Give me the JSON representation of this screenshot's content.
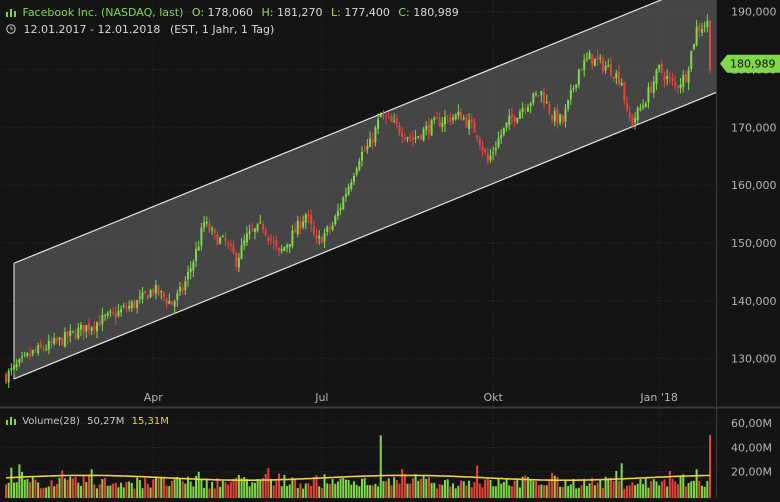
{
  "header": {
    "title": "Facebook Inc. (NASDAQ, last)",
    "open_label": "O:",
    "open": "178,060",
    "high_label": "H:",
    "high": "181,270",
    "low_label": "L:",
    "low": "177,400",
    "close_label": "C:",
    "close": "180,989",
    "date_range": "12.01.2017 - 12.01.2018",
    "settings": "(EST, 1 Jahr, 1 Tag)"
  },
  "colors": {
    "up": "#7fd94a",
    "down": "#e8433b",
    "channel_fill": "#5a5a5a",
    "channel_line": "#e6e6e6",
    "grid": "#2e2e2e",
    "axis_text": "#b4b4b4",
    "volume_avg": "#f2d23a",
    "last_price_badge": "#7fd94a"
  },
  "chart_data": [
    {
      "type": "candlestick",
      "x_ticks": [
        "Apr",
        "Jul",
        "Okt",
        "Jan '18"
      ],
      "y_ticks": [
        "130,000",
        "140,000",
        "150,000",
        "160,000",
        "170,000",
        "180,000",
        "190,000"
      ],
      "ylim": [
        122,
        192
      ],
      "last_price": "180,989",
      "grid": true,
      "series": [
        {
          "t": 0,
          "v": 127
        },
        {
          "t": 10,
          "v": 131
        },
        {
          "t": 20,
          "v": 133
        },
        {
          "t": 30,
          "v": 135.5
        },
        {
          "t": 40,
          "v": 137.5
        },
        {
          "t": 50,
          "v": 140
        },
        {
          "t": 55,
          "v": 142
        },
        {
          "t": 58,
          "v": 141
        },
        {
          "t": 62,
          "v": 139.5
        },
        {
          "t": 66,
          "v": 142
        },
        {
          "t": 70,
          "v": 147
        },
        {
          "t": 72,
          "v": 150
        },
        {
          "t": 74,
          "v": 153.5
        },
        {
          "t": 78,
          "v": 151
        },
        {
          "t": 82,
          "v": 150
        },
        {
          "t": 86,
          "v": 147
        },
        {
          "t": 90,
          "v": 151
        },
        {
          "t": 96,
          "v": 153
        },
        {
          "t": 102,
          "v": 148
        },
        {
          "t": 108,
          "v": 152
        },
        {
          "t": 112,
          "v": 155
        },
        {
          "t": 116,
          "v": 150
        },
        {
          "t": 122,
          "v": 153
        },
        {
          "t": 128,
          "v": 160
        },
        {
          "t": 132,
          "v": 165
        },
        {
          "t": 136,
          "v": 167
        },
        {
          "t": 140,
          "v": 172
        },
        {
          "t": 146,
          "v": 170
        },
        {
          "t": 152,
          "v": 168
        },
        {
          "t": 158,
          "v": 170
        },
        {
          "t": 164,
          "v": 171.5
        },
        {
          "t": 170,
          "v": 172
        },
        {
          "t": 176,
          "v": 169
        },
        {
          "t": 180,
          "v": 164
        },
        {
          "t": 184,
          "v": 168
        },
        {
          "t": 188,
          "v": 171
        },
        {
          "t": 194,
          "v": 174
        },
        {
          "t": 200,
          "v": 176
        },
        {
          "t": 204,
          "v": 172
        },
        {
          "t": 208,
          "v": 171
        },
        {
          "t": 214,
          "v": 180
        },
        {
          "t": 218,
          "v": 182
        },
        {
          "t": 222,
          "v": 181
        },
        {
          "t": 226,
          "v": 180
        },
        {
          "t": 230,
          "v": 178
        },
        {
          "t": 232,
          "v": 172
        },
        {
          "t": 234,
          "v": 171
        },
        {
          "t": 238,
          "v": 174
        },
        {
          "t": 244,
          "v": 180
        },
        {
          "t": 250,
          "v": 177
        },
        {
          "t": 254,
          "v": 179
        },
        {
          "t": 258,
          "v": 187
        },
        {
          "t": 262,
          "v": 188
        },
        {
          "t": 263,
          "v": 181
        }
      ]
    },
    {
      "type": "bar",
      "name": "Volume(28)",
      "value_label": "50,27M",
      "avg_label": "15,31M",
      "y_ticks": [
        "20,00M",
        "40,00M",
        "60,00M"
      ],
      "ylim": [
        0,
        70
      ],
      "spikes": [
        {
          "t": 5,
          "v": 26
        },
        {
          "t": 32,
          "v": 22
        },
        {
          "t": 72,
          "v": 20
        },
        {
          "t": 98,
          "v": 23
        },
        {
          "t": 140,
          "v": 50
        },
        {
          "t": 176,
          "v": 25
        },
        {
          "t": 204,
          "v": 19
        },
        {
          "t": 230,
          "v": 27
        },
        {
          "t": 258,
          "v": 22
        },
        {
          "t": 263,
          "v": 50
        }
      ],
      "avg_range": [
        13,
        17
      ]
    }
  ]
}
